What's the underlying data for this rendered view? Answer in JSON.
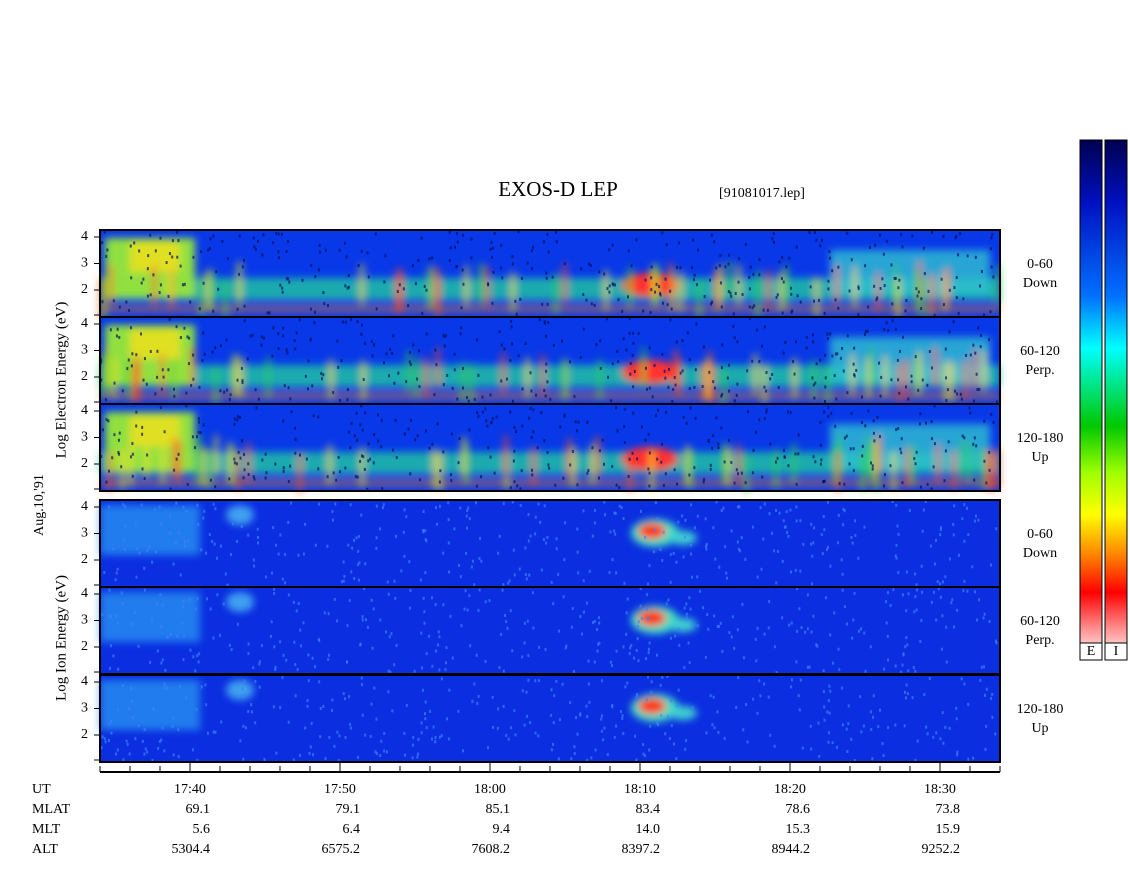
{
  "header": {
    "title": "EXOS-D LEP",
    "file": "[91081017.lep]"
  },
  "electron_axis_label": "Log Electron Energy (eV)",
  "ion_axis_label": "Log Ion Energy (eV)",
  "date": "Aug.10,'91",
  "panels": [
    {
      "label": "0-60",
      "sub": "Down",
      "ticks": [
        "4",
        "3",
        "2"
      ]
    },
    {
      "label": "60-120",
      "sub": "Perp.",
      "ticks": [
        "4",
        "3",
        "2"
      ]
    },
    {
      "label": "120-180",
      "sub": "Up",
      "ticks": [
        "4",
        "3",
        "2"
      ]
    },
    {
      "label": "0-60",
      "sub": "Down",
      "ticks": [
        "4",
        "3",
        "2"
      ]
    },
    {
      "label": "60-120",
      "sub": "Perp.",
      "ticks": [
        "4",
        "3",
        "2"
      ]
    },
    {
      "label": "120-180",
      "sub": "Up",
      "ticks": [
        "4",
        "3",
        "2"
      ]
    }
  ],
  "time_axis": {
    "name": "UT",
    "labels": [
      "17:40",
      "17:50",
      "18:00",
      "18:10",
      "18:20",
      "18:30"
    ]
  },
  "orbit": [
    {
      "name": "MLAT",
      "values": [
        "69.1",
        "79.1",
        "85.1",
        "83.4",
        "78.6",
        "73.8"
      ]
    },
    {
      "name": "MLT",
      "values": [
        "5.6",
        "6.4",
        "9.4",
        "14.0",
        "15.3",
        "15.9"
      ]
    },
    {
      "name": "ALT",
      "values": [
        "5304.4",
        "6575.2",
        "7608.2",
        "8397.2",
        "8944.2",
        "9252.2"
      ]
    }
  ],
  "colorbar": {
    "labels": [
      "E",
      "I"
    ]
  }
}
